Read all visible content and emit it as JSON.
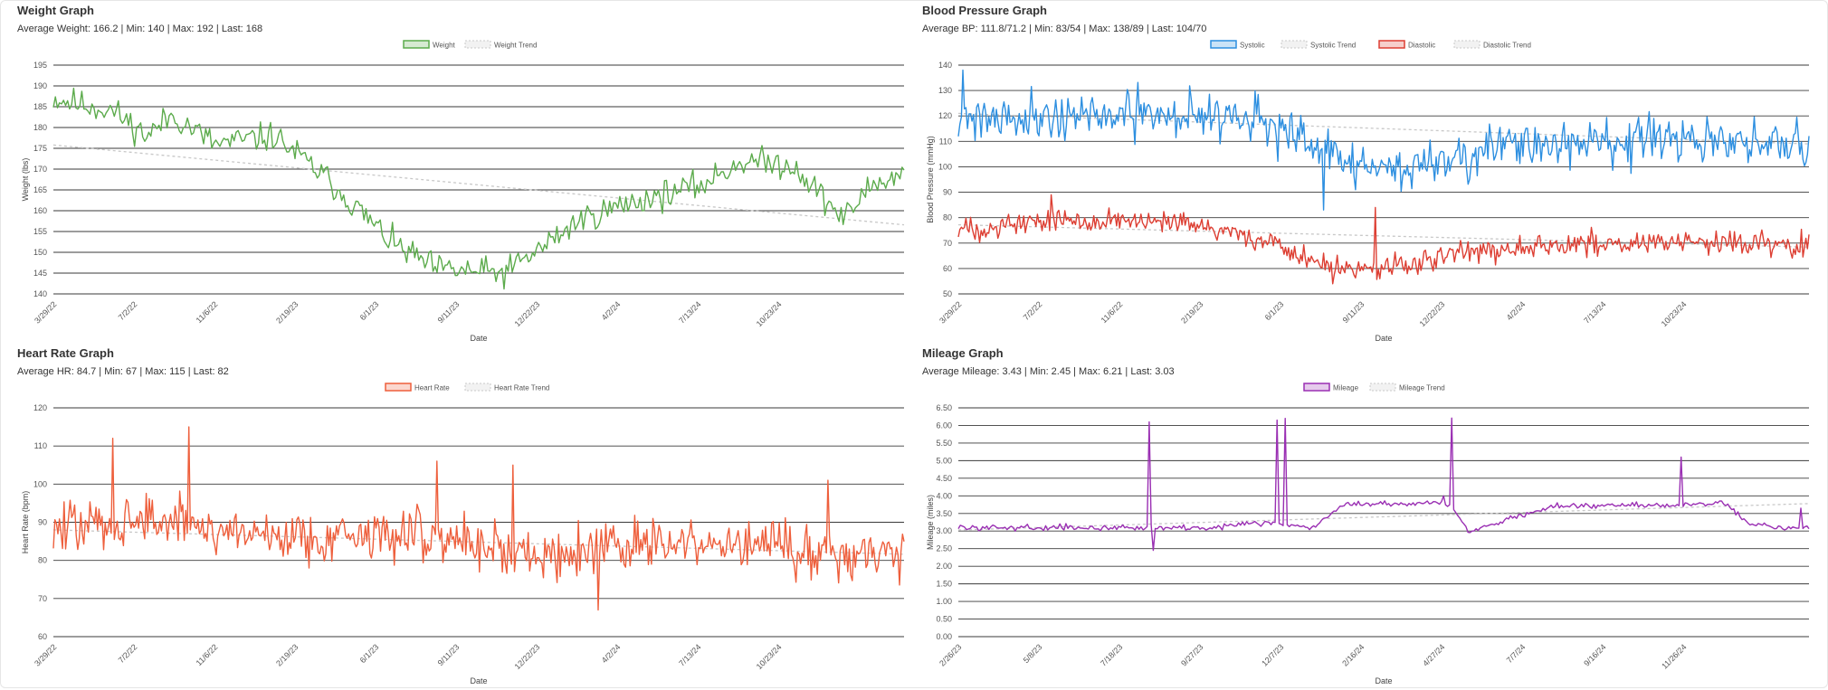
{
  "colors": {
    "weight": "#5cab4c",
    "systolic": "#2d8fe0",
    "diastolic": "#dd3f33",
    "heart_rate": "#ee5f3c",
    "mileage": "#9a2fb3",
    "trend": "#c8c8c8",
    "grid": "#3a3a3a"
  },
  "panels": [
    {
      "id": "weight",
      "title": "Weight Graph",
      "summary": "Average Weight: 166.2 | Min: 140 | Max: 192 | Last: 168",
      "chart_data": {
        "type": "line",
        "ylabel": "Weight (lbs)",
        "xlabel": "Date",
        "ylim": [
          140,
          195
        ],
        "yticks": [
          140,
          145,
          150,
          155,
          160,
          165,
          170,
          175,
          180,
          185,
          190,
          195
        ],
        "ytick_decimals": 0,
        "xticks": [
          "3/29/22",
          "7/2/22",
          "11/6/22",
          "2/19/23",
          "6/1/23",
          "9/11/23",
          "12/22/23",
          "4/2/24",
          "7/13/24",
          "10/23/24"
        ],
        "legend_position": "top-center",
        "legend": [
          {
            "label": "Weight",
            "color_key": "weight",
            "trend": false
          },
          {
            "label": "Weight Trend",
            "color_key": "trend",
            "trend": true
          }
        ],
        "n_points": 420,
        "series": [
          {
            "color_key": "weight",
            "noise": 3.0,
            "seed": 11,
            "anchors": [
              [
                0,
                187
              ],
              [
                0.07,
                184
              ],
              [
                0.11,
                178
              ],
              [
                0.14,
                183
              ],
              [
                0.19,
                176
              ],
              [
                0.26,
                178
              ],
              [
                0.32,
                168
              ],
              [
                0.37,
                158
              ],
              [
                0.4,
                152
              ],
              [
                0.45,
                146
              ],
              [
                0.53,
                145
              ],
              [
                0.58,
                152
              ],
              [
                0.62,
                158
              ],
              [
                0.68,
                162
              ],
              [
                0.76,
                166
              ],
              [
                0.81,
                172
              ],
              [
                0.87,
                171
              ],
              [
                0.91,
                162
              ],
              [
                0.93,
                158
              ],
              [
                0.96,
                166
              ],
              [
                1.0,
                169
              ]
            ],
            "spikes": []
          }
        ],
        "trends": [
          {
            "color_key": "trend",
            "from": 175.8,
            "to": 156.6
          }
        ]
      }
    },
    {
      "id": "blood-pressure",
      "title": "Blood Pressure Graph",
      "summary": "Average BP: 111.8/71.2 | Min: 83/54 | Max: 138/89 | Last: 104/70",
      "chart_data": {
        "type": "line",
        "ylabel": "Blood Pressure (mmHg)",
        "xlabel": "Date",
        "ylim": [
          50,
          140
        ],
        "yticks": [
          50,
          60,
          70,
          80,
          90,
          100,
          110,
          120,
          130,
          140
        ],
        "ytick_decimals": 0,
        "xticks": [
          "3/29/22",
          "7/2/22",
          "11/6/22",
          "2/19/23",
          "6/1/23",
          "9/11/23",
          "12/22/23",
          "4/2/24",
          "7/13/24",
          "10/23/24"
        ],
        "legend_position": "top-center",
        "legend": [
          {
            "label": "Systolic",
            "color_key": "systolic",
            "trend": false
          },
          {
            "label": "Systolic Trend",
            "color_key": "trend",
            "trend": true
          },
          {
            "label": "Diastolic",
            "color_key": "diastolic",
            "trend": false
          },
          {
            "label": "Diastolic Trend",
            "color_key": "trend",
            "trend": true
          }
        ],
        "n_points": 560,
        "series": [
          {
            "color_key": "systolic",
            "noise": 8.0,
            "seed": 21,
            "anchors": [
              [
                0,
                120
              ],
              [
                0.2,
                120
              ],
              [
                0.33,
                121
              ],
              [
                0.38,
                114
              ],
              [
                0.44,
                104
              ],
              [
                0.5,
                98
              ],
              [
                0.56,
                102
              ],
              [
                0.62,
                107
              ],
              [
                0.75,
                110
              ],
              [
                0.85,
                110
              ],
              [
                1.0,
                108
              ]
            ],
            "spikes": [
              [
                0.005,
                138
              ],
              [
                0.43,
                83
              ],
              [
                0.5,
                86
              ]
            ]
          },
          {
            "color_key": "diastolic",
            "noise": 4.0,
            "seed": 33,
            "anchors": [
              [
                0,
                75
              ],
              [
                0.1,
                79
              ],
              [
                0.18,
                79
              ],
              [
                0.3,
                76
              ],
              [
                0.37,
                70
              ],
              [
                0.42,
                62
              ],
              [
                0.48,
                59
              ],
              [
                0.54,
                62
              ],
              [
                0.62,
                68
              ],
              [
                0.75,
                70
              ],
              [
                1.0,
                70
              ]
            ],
            "spikes": [
              [
                0.11,
                89
              ],
              [
                0.49,
                84
              ],
              [
                0.44,
                54
              ]
            ]
          }
        ],
        "trends": [
          {
            "color_key": "trend",
            "from": 121.0,
            "to": 109.0
          },
          {
            "color_key": "trend",
            "from": 77.2,
            "to": 68.4
          }
        ]
      }
    },
    {
      "id": "heart-rate",
      "title": "Heart Rate Graph",
      "summary": "Average HR: 84.7 | Min: 67 | Max: 115 | Last: 82",
      "chart_data": {
        "type": "line",
        "ylabel": "Heart Rate (bpm)",
        "xlabel": "Date",
        "ylim": [
          60,
          120
        ],
        "yticks": [
          60,
          70,
          80,
          90,
          100,
          110,
          120
        ],
        "ytick_decimals": 0,
        "xticks": [
          "3/29/22",
          "7/2/22",
          "11/6/22",
          "2/19/23",
          "6/1/23",
          "9/11/23",
          "12/22/23",
          "4/2/24",
          "7/13/24",
          "10/23/24"
        ],
        "legend_position": "top-center",
        "legend": [
          {
            "label": "Heart Rate",
            "color_key": "heart_rate",
            "trend": false
          },
          {
            "label": "Heart Rate Trend",
            "color_key": "trend",
            "trend": true
          }
        ],
        "n_points": 560,
        "series": [
          {
            "color_key": "heart_rate",
            "noise": 6.0,
            "seed": 47,
            "anchors": [
              [
                0,
                88
              ],
              [
                0.1,
                91
              ],
              [
                0.2,
                88
              ],
              [
                0.3,
                86
              ],
              [
                0.42,
                87
              ],
              [
                0.5,
                85
              ],
              [
                0.56,
                81
              ],
              [
                0.65,
                84
              ],
              [
                0.8,
                84
              ],
              [
                1.0,
                81
              ]
            ],
            "spikes": [
              [
                0.07,
                112
              ],
              [
                0.16,
                115
              ],
              [
                0.45,
                106
              ],
              [
                0.54,
                105
              ],
              [
                0.64,
                67
              ],
              [
                0.91,
                101
              ]
            ]
          }
        ],
        "trends": [
          {
            "color_key": "trend",
            "from": 88.0,
            "to": 81.6
          }
        ]
      }
    },
    {
      "id": "mileage",
      "title": "Mileage Graph",
      "summary": "Average Mileage: 3.43 | Min: 2.45 | Max: 6.21 | Last: 3.03",
      "chart_data": {
        "type": "line",
        "ylabel": "Mileage (miles)",
        "xlabel": "Date",
        "ylim": [
          0,
          6.5
        ],
        "yticks": [
          0,
          0.5,
          1,
          1.5,
          2,
          2.5,
          3,
          3.5,
          4,
          4.5,
          5,
          5.5,
          6,
          6.5
        ],
        "ytick_decimals": 2,
        "xticks": [
          "2/26/23",
          "5/8/23",
          "7/18/23",
          "9/27/23",
          "12/7/23",
          "2/16/24",
          "4/27/24",
          "7/7/24",
          "9/16/24",
          "11/26/24"
        ],
        "legend_position": "top-center",
        "legend": [
          {
            "label": "Mileage",
            "color_key": "mileage",
            "trend": false
          },
          {
            "label": "Mileage Trend",
            "color_key": "trend",
            "trend": true
          }
        ],
        "n_points": 420,
        "series": [
          {
            "color_key": "mileage",
            "noise": 0.07,
            "seed": 59,
            "anchors": [
              [
                0,
                3.1
              ],
              [
                0.3,
                3.1
              ],
              [
                0.33,
                3.2
              ],
              [
                0.37,
                3.25
              ],
              [
                0.38,
                3.15
              ],
              [
                0.42,
                3.15
              ],
              [
                0.45,
                3.75
              ],
              [
                0.55,
                3.8
              ],
              [
                0.58,
                3.7
              ],
              [
                0.6,
                3.0
              ],
              [
                0.64,
                3.3
              ],
              [
                0.7,
                3.7
              ],
              [
                0.8,
                3.75
              ],
              [
                0.86,
                3.75
              ],
              [
                0.9,
                3.8
              ],
              [
                0.93,
                3.2
              ],
              [
                1.0,
                3.05
              ]
            ],
            "spikes": [
              [
                0.225,
                6.1
              ],
              [
                0.23,
                2.45
              ],
              [
                0.375,
                6.15
              ],
              [
                0.385,
                6.2
              ],
              [
                0.58,
                6.21
              ],
              [
                0.57,
                4.0
              ],
              [
                0.85,
                5.1
              ],
              [
                0.99,
                3.65
              ]
            ]
          }
        ],
        "trends": [
          {
            "color_key": "trend",
            "from": 3.03,
            "to": 3.78
          }
        ]
      }
    }
  ]
}
